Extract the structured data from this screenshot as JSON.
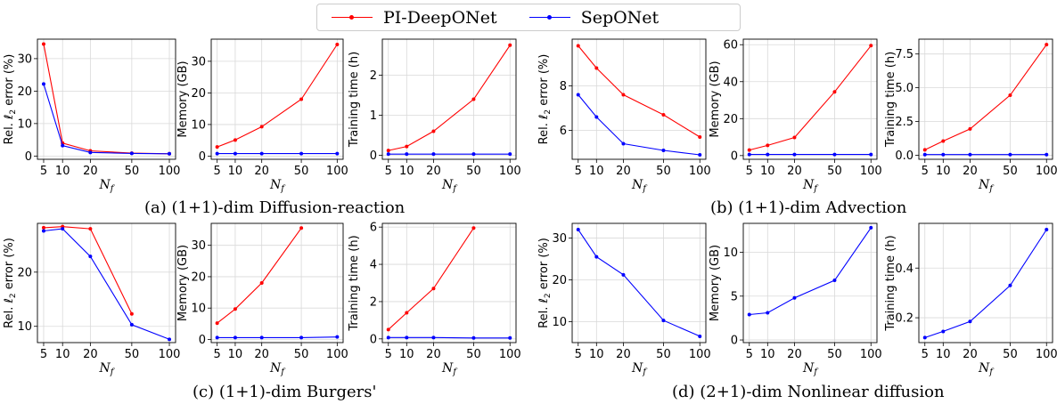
{
  "legend": {
    "pi": "PI-DeepONet",
    "sep": "SepONet"
  },
  "colors": {
    "pi": "#ff0000",
    "sep": "#0000ff"
  },
  "captions": {
    "a": "(a) (1+1)-dim Diffusion-reaction",
    "b": "(b) (1+1)-dim Advection",
    "c": "(c) (1+1)-dim Burgers'",
    "d": "(d) (2+1)-dim Nonlinear diffusion"
  },
  "chart_data": [
    {
      "type": "line",
      "panel": "a",
      "xlabel": "N_f",
      "ylabel": "Rel. ℓ2 error (%)",
      "categories": [
        "5",
        "10",
        "20",
        "50",
        "100"
      ],
      "ylim": [
        -1,
        36
      ],
      "yticks": [
        0,
        10,
        20,
        30
      ],
      "series": [
        {
          "name": "PI-DeepONet",
          "values": [
            34.5,
            4.0,
            1.6,
            0.9,
            0.7
          ]
        },
        {
          "name": "SepONet",
          "values": [
            22.2,
            3.2,
            1.1,
            0.8,
            0.7
          ]
        }
      ]
    },
    {
      "type": "line",
      "panel": "a",
      "xlabel": "N_f",
      "ylabel": "Memory (GB)",
      "categories": [
        "5",
        "10",
        "20",
        "50",
        "100"
      ],
      "ylim": [
        -1,
        37
      ],
      "yticks": [
        0,
        10,
        20,
        30
      ],
      "series": [
        {
          "name": "PI-DeepONet",
          "values": [
            2.9,
            5.1,
            9.3,
            18.0,
            35.3
          ]
        },
        {
          "name": "SepONet",
          "values": [
            0.8,
            0.8,
            0.8,
            0.8,
            0.8
          ]
        }
      ]
    },
    {
      "type": "line",
      "panel": "a",
      "xlabel": "N_f",
      "ylabel": "Training time (h)",
      "categories": [
        "5",
        "10",
        "20",
        "50",
        "100"
      ],
      "ylim": [
        -0.1,
        2.9
      ],
      "yticks": [
        0,
        1,
        2
      ],
      "series": [
        {
          "name": "PI-DeepONet",
          "values": [
            0.12,
            0.22,
            0.6,
            1.4,
            2.75
          ]
        },
        {
          "name": "SepONet",
          "values": [
            0.03,
            0.03,
            0.03,
            0.03,
            0.03
          ]
        }
      ]
    },
    {
      "type": "line",
      "panel": "b",
      "xlabel": "N_f",
      "ylabel": "Rel. ℓ2 error (%)",
      "categories": [
        "5",
        "10",
        "20",
        "50",
        "100"
      ],
      "ylim": [
        4.7,
        10.1
      ],
      "yticks": [
        6,
        8
      ],
      "series": [
        {
          "name": "PI-DeepONet",
          "values": [
            9.8,
            8.8,
            7.6,
            6.7,
            5.7
          ]
        },
        {
          "name": "SepONet",
          "values": [
            7.6,
            6.6,
            5.4,
            5.1,
            4.9
          ]
        }
      ]
    },
    {
      "type": "line",
      "panel": "b",
      "xlabel": "N_f",
      "ylabel": "Memory (GB)",
      "categories": [
        "5",
        "10",
        "20",
        "50",
        "100"
      ],
      "ylim": [
        -2,
        63
      ],
      "yticks": [
        0,
        20,
        40,
        60
      ],
      "series": [
        {
          "name": "PI-DeepONet",
          "values": [
            3.0,
            5.5,
            9.8,
            34.5,
            59.5
          ]
        },
        {
          "name": "SepONet",
          "values": [
            0.6,
            0.6,
            0.6,
            0.6,
            0.6
          ]
        }
      ]
    },
    {
      "type": "line",
      "panel": "b",
      "xlabel": "N_f",
      "ylabel": "Training time (h)",
      "categories": [
        "5",
        "10",
        "20",
        "50",
        "100"
      ],
      "ylim": [
        -0.3,
        8.6
      ],
      "yticks": [
        0.0,
        2.5,
        5.0,
        7.5
      ],
      "tickDecimals": 1,
      "series": [
        {
          "name": "PI-DeepONet",
          "values": [
            0.4,
            1.05,
            1.95,
            4.45,
            8.2
          ]
        },
        {
          "name": "SepONet",
          "values": [
            0.05,
            0.05,
            0.05,
            0.05,
            0.05
          ]
        }
      ]
    },
    {
      "type": "line",
      "panel": "c",
      "xlabel": "N_f",
      "ylabel": "Rel. ℓ2 error (%)",
      "categories": [
        "5",
        "10",
        "20",
        "50",
        "100"
      ],
      "ylim": [
        7,
        29
      ],
      "yticks": [
        10,
        20
      ],
      "series": [
        {
          "name": "PI-DeepONet",
          "values": [
            28.2,
            28.4,
            28.0,
            12.3,
            null
          ]
        },
        {
          "name": "SepONet",
          "values": [
            27.6,
            28.0,
            22.9,
            10.3,
            7.6
          ]
        }
      ]
    },
    {
      "type": "line",
      "panel": "c",
      "xlabel": "N_f",
      "ylabel": "Memory (GB)",
      "categories": [
        "5",
        "10",
        "20",
        "50",
        "100"
      ],
      "ylim": [
        -1,
        37
      ],
      "yticks": [
        0,
        10,
        20,
        30
      ],
      "series": [
        {
          "name": "PI-DeepONet",
          "values": [
            5.2,
            9.7,
            18.0,
            35.5,
            null
          ]
        },
        {
          "name": "SepONet",
          "values": [
            0.6,
            0.6,
            0.6,
            0.6,
            0.8
          ]
        }
      ]
    },
    {
      "type": "line",
      "panel": "c",
      "xlabel": "N_f",
      "ylabel": "Training time (h)",
      "categories": [
        "5",
        "10",
        "20",
        "50",
        "100"
      ],
      "ylim": [
        -0.2,
        6.2
      ],
      "yticks": [
        0,
        2,
        4,
        6
      ],
      "series": [
        {
          "name": "PI-DeepONet",
          "values": [
            0.5,
            1.4,
            2.7,
            5.95,
            null
          ]
        },
        {
          "name": "SepONet",
          "values": [
            0.07,
            0.07,
            0.07,
            0.05,
            0.05
          ]
        }
      ]
    },
    {
      "type": "line",
      "panel": "d",
      "xlabel": "N_f",
      "ylabel": "Rel. ℓ2 error (%)",
      "categories": [
        "5",
        "10",
        "20",
        "50",
        "100"
      ],
      "ylim": [
        5,
        33.5
      ],
      "yticks": [
        10,
        20,
        30
      ],
      "series": [
        {
          "name": "SepONet",
          "values": [
            32.0,
            25.5,
            21.2,
            10.3,
            6.5
          ]
        }
      ]
    },
    {
      "type": "line",
      "panel": "d",
      "xlabel": "N_f",
      "ylabel": "Memory (GB)",
      "categories": [
        "5",
        "10",
        "20",
        "50",
        "100"
      ],
      "ylim": [
        -0.3,
        13.3
      ],
      "yticks": [
        0,
        5,
        10
      ],
      "series": [
        {
          "name": "SepONet",
          "values": [
            2.9,
            3.1,
            4.8,
            6.8,
            12.8
          ]
        }
      ]
    },
    {
      "type": "line",
      "panel": "d",
      "xlabel": "N_f",
      "ylabel": "Training time (h)",
      "categories": [
        "5",
        "10",
        "20",
        "50",
        "100"
      ],
      "ylim": [
        0.1,
        0.58
      ],
      "yticks": [
        0.2,
        0.4
      ],
      "tickDecimals": 1,
      "series": [
        {
          "name": "SepONet",
          "values": [
            0.12,
            0.145,
            0.185,
            0.33,
            0.555
          ]
        }
      ]
    }
  ]
}
